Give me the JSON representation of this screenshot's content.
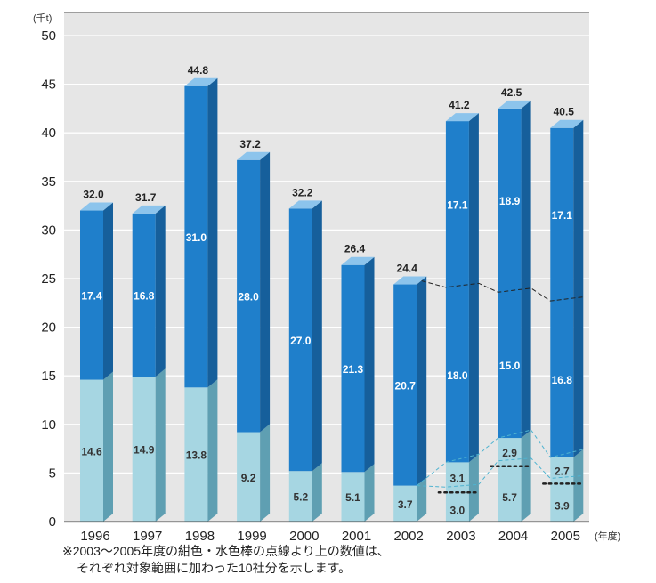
{
  "chart_data": {
    "type": "bar",
    "stacked": true,
    "y_unit": "(千t)",
    "x_unit": "(年度)",
    "ylim": [
      0,
      50
    ],
    "yticks": [
      0,
      5,
      10,
      15,
      20,
      25,
      30,
      35,
      40,
      45,
      50
    ],
    "categories": [
      "1996",
      "1997",
      "1998",
      "1999",
      "2000",
      "2001",
      "2002",
      "2003",
      "2004",
      "2005"
    ],
    "series": [
      {
        "values": [
          14.6,
          14.9,
          13.8,
          9.2,
          5.2,
          5.1,
          3.7,
          6.1,
          8.6,
          6.6
        ],
        "labels": [
          "14.6",
          "14.9",
          "13.8",
          "9.2",
          "5.2",
          "5.1",
          "3.7",
          "",
          "",
          ""
        ],
        "sub_labels": [
          null,
          null,
          null,
          null,
          null,
          null,
          null,
          [
            "3.1",
            "3.0"
          ],
          [
            "2.9",
            "5.7"
          ],
          [
            "2.7",
            "3.9"
          ]
        ]
      },
      {
        "values": [
          17.4,
          16.8,
          31.0,
          28.0,
          27.0,
          21.3,
          20.7,
          35.1,
          33.9,
          33.9
        ],
        "labels": [
          "17.4",
          "16.8",
          "31.0",
          "28.0",
          "27.0",
          "21.3",
          "20.7",
          "",
          "",
          ""
        ],
        "sub_labels": [
          null,
          null,
          null,
          null,
          null,
          null,
          null,
          [
            "17.1",
            "18.0"
          ],
          [
            "18.9",
            "15.0"
          ],
          [
            "17.1",
            "16.8"
          ]
        ]
      }
    ],
    "totals": [
      "32.0",
      "31.7",
      "44.8",
      "37.2",
      "32.2",
      "26.4",
      "24.4",
      "41.2",
      "42.5",
      "40.5"
    ],
    "dotted_split_light": [
      null,
      null,
      null,
      null,
      null,
      null,
      null,
      3.0,
      5.7,
      3.9
    ],
    "dashed_split_dark": [
      null,
      null,
      null,
      null,
      null,
      null,
      null,
      24.1,
      23.6,
      22.7
    ],
    "colors": {
      "light_front": "#a6d6e2",
      "light_side": "#5f9fb2",
      "light_top": "#c8e8f0",
      "dark_front": "#1f7fcb",
      "dark_side": "#165f9b",
      "dark_top": "#8cc4ec",
      "plot_bg": "#e6e6e6",
      "grid": "#ffffff"
    }
  },
  "footnote": {
    "line1": "※2003～2005年度の紺色・水色棒の点線より上の数値は、",
    "line2": "それぞれ対象範囲に加わった10社分を示します。"
  }
}
